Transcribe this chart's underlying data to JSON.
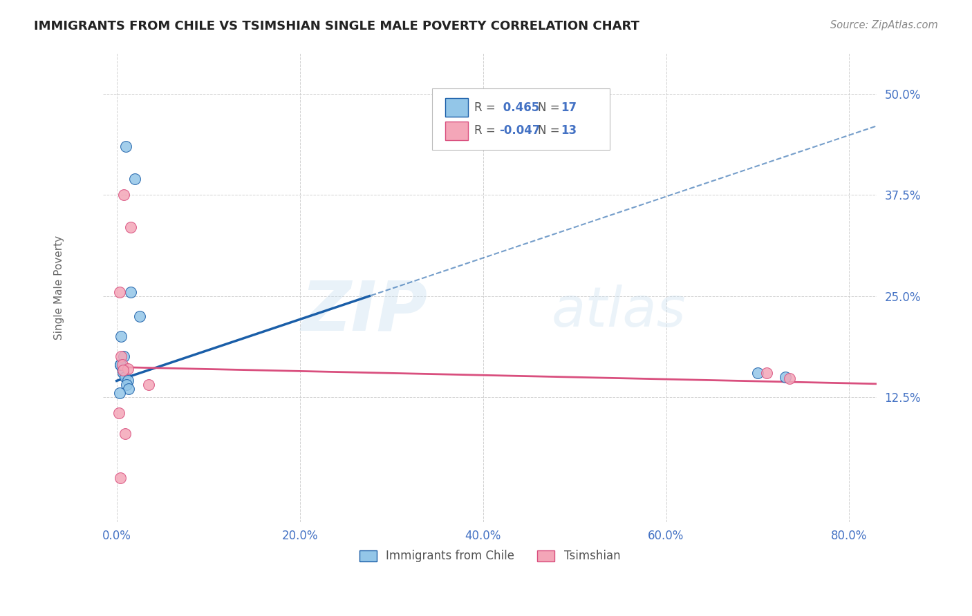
{
  "title": "IMMIGRANTS FROM CHILE VS TSIMSHIAN SINGLE MALE POVERTY CORRELATION CHART",
  "source": "Source: ZipAtlas.com",
  "xlabel_ticks": [
    "0.0%",
    "20.0%",
    "40.0%",
    "60.0%",
    "80.0%"
  ],
  "xlabel_vals": [
    0.0,
    20.0,
    40.0,
    60.0,
    80.0
  ],
  "ylabel": "Single Male Poverty",
  "ylabel_ticks_right": [
    "50.0%",
    "37.5%",
    "25.0%",
    "12.5%"
  ],
  "ylabel_vals": [
    50.0,
    37.5,
    25.0,
    12.5
  ],
  "xlim": [
    -1.5,
    83.0
  ],
  "ylim": [
    -3.0,
    55.0
  ],
  "blue_scatter_x": [
    1.0,
    2.0,
    1.5,
    2.5,
    0.5,
    0.8,
    0.4,
    0.6,
    0.7,
    0.9,
    1.2,
    1.1,
    1.3,
    0.3,
    0.4,
    70.0,
    73.0
  ],
  "blue_scatter_y": [
    43.5,
    39.5,
    25.5,
    22.5,
    20.0,
    17.5,
    16.5,
    16.0,
    15.5,
    15.0,
    14.5,
    14.0,
    13.5,
    13.0,
    16.5,
    15.5,
    15.0
  ],
  "pink_scatter_x": [
    0.8,
    1.5,
    0.3,
    0.5,
    0.6,
    1.2,
    0.7,
    3.5,
    71.0,
    73.5,
    0.25,
    0.9,
    0.4
  ],
  "pink_scatter_y": [
    37.5,
    33.5,
    25.5,
    17.5,
    16.5,
    16.0,
    15.8,
    14.0,
    15.5,
    14.8,
    10.5,
    8.0,
    2.5
  ],
  "blue_color": "#93c6e8",
  "pink_color": "#f4a6b8",
  "blue_line_color": "#1a5ea8",
  "pink_line_color": "#d94f7e",
  "R_blue": 0.465,
  "N_blue": 17,
  "R_pink": -0.047,
  "N_pink": 13,
  "watermark_zip": "ZIP",
  "watermark_atlas": "atlas",
  "marker_size": 130,
  "title_color": "#222222",
  "axis_value_color": "#4472c4",
  "grid_color": "#cccccc",
  "legend_label_blue": "Immigrants from Chile",
  "legend_label_pink": "Tsimshian",
  "blue_regression_slope": 0.38,
  "blue_regression_intercept": 14.5,
  "pink_regression_slope": -0.025,
  "pink_regression_intercept": 16.2
}
